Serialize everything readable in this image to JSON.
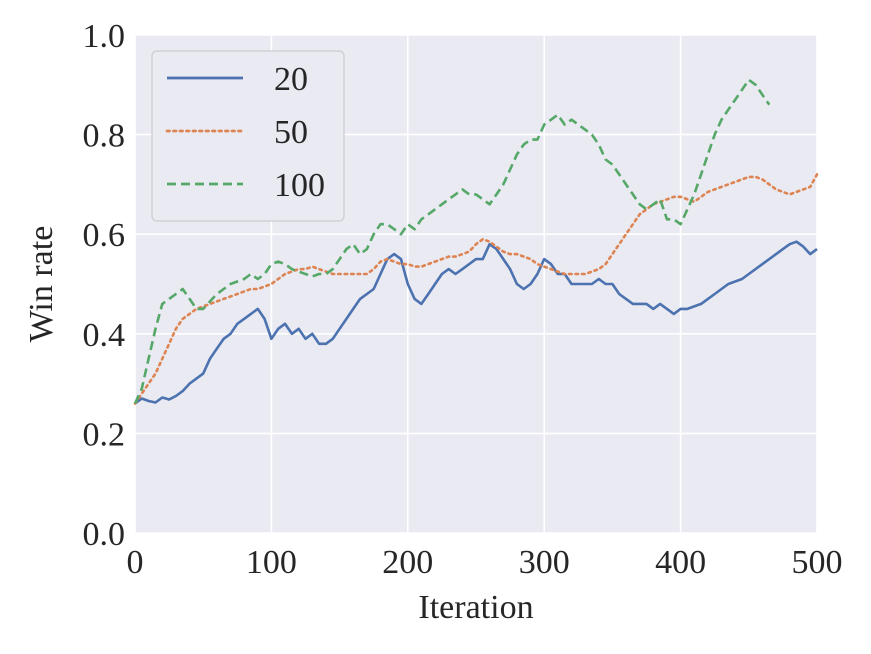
{
  "chart_data": {
    "type": "line",
    "title": "",
    "xlabel": "Iteration",
    "ylabel": "Win rate",
    "xlim": [
      0,
      500
    ],
    "ylim": [
      0.0,
      1.0
    ],
    "xticks": [
      0,
      100,
      200,
      300,
      400,
      500
    ],
    "yticks": [
      0.0,
      0.2,
      0.4,
      0.6,
      0.8,
      1.0
    ],
    "xtick_labels": [
      "0",
      "100",
      "200",
      "300",
      "400",
      "500"
    ],
    "ytick_labels": [
      "0.0",
      "0.2",
      "0.4",
      "0.6",
      "0.8",
      "1.0"
    ],
    "grid": true,
    "background": "#eaeaf2",
    "legend_position": "upper-left",
    "series": [
      {
        "name": "20",
        "color": "#4c72b0",
        "style": "solid",
        "x": [
          0,
          5,
          10,
          15,
          20,
          25,
          30,
          35,
          40,
          45,
          50,
          55,
          60,
          65,
          70,
          75,
          80,
          85,
          90,
          95,
          100,
          105,
          110,
          115,
          120,
          125,
          130,
          135,
          140,
          145,
          150,
          155,
          160,
          165,
          170,
          175,
          180,
          185,
          190,
          195,
          200,
          205,
          210,
          215,
          220,
          225,
          230,
          235,
          240,
          245,
          250,
          255,
          260,
          265,
          270,
          275,
          280,
          285,
          290,
          295,
          300,
          305,
          310,
          315,
          320,
          325,
          330,
          335,
          340,
          345,
          350,
          355,
          360,
          365,
          370,
          375,
          380,
          385,
          390,
          395,
          400,
          405,
          410,
          415,
          420,
          425,
          430,
          435,
          440,
          445,
          450,
          455,
          460,
          465,
          470,
          475,
          480,
          485,
          490,
          495,
          500
        ],
        "y": [
          0.26,
          0.27,
          0.265,
          0.262,
          0.272,
          0.268,
          0.275,
          0.285,
          0.3,
          0.31,
          0.32,
          0.35,
          0.37,
          0.39,
          0.4,
          0.42,
          0.43,
          0.44,
          0.45,
          0.43,
          0.39,
          0.41,
          0.42,
          0.4,
          0.41,
          0.39,
          0.4,
          0.38,
          0.38,
          0.39,
          0.41,
          0.43,
          0.45,
          0.47,
          0.48,
          0.49,
          0.52,
          0.55,
          0.56,
          0.55,
          0.5,
          0.47,
          0.46,
          0.48,
          0.5,
          0.52,
          0.53,
          0.52,
          0.53,
          0.54,
          0.55,
          0.55,
          0.58,
          0.57,
          0.55,
          0.53,
          0.5,
          0.49,
          0.5,
          0.52,
          0.55,
          0.54,
          0.52,
          0.52,
          0.5,
          0.5,
          0.5,
          0.5,
          0.51,
          0.5,
          0.5,
          0.48,
          0.47,
          0.46,
          0.46,
          0.46,
          0.45,
          0.46,
          0.45,
          0.44,
          0.45,
          0.45,
          0.455,
          0.46,
          0.47,
          0.48,
          0.49,
          0.5,
          0.505,
          0.51,
          0.52,
          0.53,
          0.54,
          0.55,
          0.56,
          0.57,
          0.58,
          0.585,
          0.575,
          0.56,
          0.57
        ]
      },
      {
        "name": "50",
        "color": "#dd8452",
        "style": "dotted",
        "x": [
          0,
          5,
          10,
          15,
          20,
          25,
          30,
          35,
          40,
          45,
          50,
          55,
          60,
          65,
          70,
          75,
          80,
          85,
          90,
          95,
          100,
          105,
          110,
          115,
          120,
          125,
          130,
          135,
          140,
          145,
          150,
          155,
          160,
          165,
          170,
          175,
          180,
          185,
          190,
          195,
          200,
          205,
          210,
          215,
          220,
          225,
          230,
          235,
          240,
          245,
          250,
          255,
          260,
          265,
          270,
          275,
          280,
          285,
          290,
          295,
          300,
          305,
          310,
          315,
          320,
          325,
          330,
          335,
          340,
          345,
          350,
          355,
          360,
          365,
          370,
          375,
          380,
          385,
          390,
          395,
          400,
          405,
          410,
          415,
          420,
          425,
          430,
          435,
          440,
          445,
          450,
          455,
          460,
          465,
          470,
          475,
          480,
          485,
          490,
          495,
          500
        ],
        "y": [
          0.26,
          0.28,
          0.3,
          0.32,
          0.35,
          0.38,
          0.41,
          0.43,
          0.44,
          0.45,
          0.455,
          0.46,
          0.465,
          0.47,
          0.475,
          0.48,
          0.485,
          0.49,
          0.49,
          0.495,
          0.5,
          0.51,
          0.52,
          0.525,
          0.53,
          0.53,
          0.535,
          0.53,
          0.525,
          0.52,
          0.52,
          0.52,
          0.52,
          0.52,
          0.52,
          0.53,
          0.545,
          0.55,
          0.545,
          0.54,
          0.54,
          0.535,
          0.535,
          0.54,
          0.545,
          0.55,
          0.555,
          0.555,
          0.56,
          0.565,
          0.58,
          0.59,
          0.585,
          0.575,
          0.565,
          0.56,
          0.56,
          0.555,
          0.55,
          0.54,
          0.535,
          0.53,
          0.525,
          0.52,
          0.52,
          0.52,
          0.52,
          0.525,
          0.53,
          0.54,
          0.56,
          0.58,
          0.6,
          0.62,
          0.64,
          0.65,
          0.66,
          0.665,
          0.67,
          0.675,
          0.675,
          0.67,
          0.665,
          0.675,
          0.685,
          0.69,
          0.695,
          0.7,
          0.705,
          0.71,
          0.715,
          0.715,
          0.71,
          0.7,
          0.69,
          0.685,
          0.68,
          0.685,
          0.69,
          0.695,
          0.72
        ]
      },
      {
        "name": "100",
        "color": "#55a868",
        "style": "dashed",
        "x": [
          0,
          5,
          10,
          15,
          20,
          25,
          30,
          35,
          40,
          45,
          50,
          55,
          60,
          65,
          70,
          75,
          80,
          85,
          90,
          95,
          100,
          105,
          110,
          115,
          120,
          125,
          130,
          135,
          140,
          145,
          150,
          155,
          160,
          165,
          170,
          175,
          180,
          185,
          190,
          195,
          200,
          205,
          210,
          215,
          220,
          225,
          230,
          235,
          240,
          245,
          250,
          255,
          260,
          265,
          270,
          275,
          280,
          285,
          290,
          295,
          300,
          305,
          310,
          315,
          320,
          325,
          330,
          335,
          340,
          345,
          350,
          355,
          360,
          365,
          370,
          375,
          380,
          385,
          390,
          395,
          400,
          405,
          410,
          415,
          420,
          425,
          430,
          435,
          440,
          445,
          450,
          455,
          460,
          465
        ],
        "y": [
          0.26,
          0.29,
          0.35,
          0.41,
          0.46,
          0.47,
          0.48,
          0.49,
          0.47,
          0.45,
          0.45,
          0.465,
          0.48,
          0.49,
          0.5,
          0.505,
          0.51,
          0.52,
          0.51,
          0.52,
          0.54,
          0.545,
          0.54,
          0.53,
          0.525,
          0.52,
          0.515,
          0.52,
          0.52,
          0.53,
          0.55,
          0.57,
          0.58,
          0.56,
          0.57,
          0.6,
          0.62,
          0.62,
          0.61,
          0.6,
          0.62,
          0.61,
          0.63,
          0.64,
          0.65,
          0.66,
          0.67,
          0.68,
          0.69,
          0.68,
          0.68,
          0.67,
          0.66,
          0.68,
          0.7,
          0.73,
          0.76,
          0.78,
          0.79,
          0.79,
          0.82,
          0.83,
          0.84,
          0.82,
          0.83,
          0.82,
          0.81,
          0.8,
          0.78,
          0.75,
          0.74,
          0.72,
          0.7,
          0.68,
          0.66,
          0.65,
          0.66,
          0.67,
          0.63,
          0.63,
          0.62,
          0.65,
          0.68,
          0.72,
          0.76,
          0.8,
          0.83,
          0.85,
          0.87,
          0.89,
          0.91,
          0.9,
          0.88,
          0.86
        ]
      }
    ]
  }
}
